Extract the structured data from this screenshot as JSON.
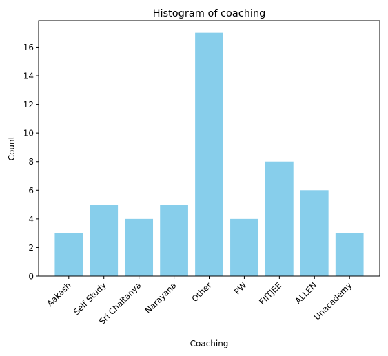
{
  "chart_data": {
    "type": "bar",
    "title": "Histogram of coaching",
    "xlabel": "Coaching",
    "ylabel": "Count",
    "categories": [
      "Aakash",
      "Self Study",
      "Sri Chaitanya",
      "Narayana",
      "Other",
      "PW",
      "FIITJEE",
      "ALLEN",
      "Unacademy"
    ],
    "values": [
      3,
      5,
      4,
      5,
      17,
      4,
      8,
      6,
      3
    ],
    "ylim": [
      0,
      17.85
    ],
    "yticks": [
      0,
      2,
      4,
      6,
      8,
      10,
      12,
      14,
      16
    ],
    "bar_color": "#87ceeb",
    "grid": false,
    "legend": "none",
    "xtick_rotation": -45
  }
}
